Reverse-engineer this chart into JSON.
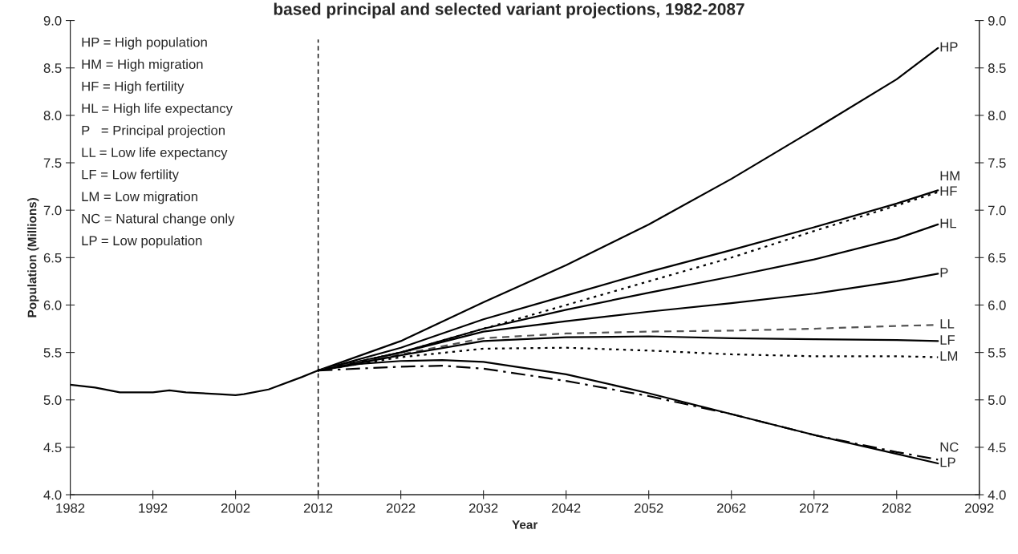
{
  "chart_data": {
    "type": "line",
    "title": "based principal and selected variant projections, 1982-2087",
    "xlabel": "Year",
    "ylabel": "Population (Millions)",
    "xlim": [
      1982,
      2092
    ],
    "xticks": [
      1982,
      1992,
      2002,
      2012,
      2022,
      2032,
      2042,
      2052,
      2062,
      2072,
      2082,
      2092
    ],
    "ylim": [
      4.0,
      9.0
    ],
    "yticks": [
      {
        "value": 4.0,
        "label": "4.0"
      },
      {
        "value": 4.5,
        "label": "4.5"
      },
      {
        "value": 5.0,
        "label": "5.0"
      },
      {
        "value": 5.5,
        "label": "5.5"
      },
      {
        "value": 6.0,
        "label": "6.0"
      },
      {
        "value": 6.5,
        "label": "6.5"
      },
      {
        "value": 7.0,
        "label": "7.0"
      },
      {
        "value": 7.5,
        "label": "7.5"
      },
      {
        "value": 8.0,
        "label": "8.0"
      },
      {
        "value": 8.5,
        "label": "8.5"
      },
      {
        "value": 9.0,
        "label": "9.0"
      }
    ],
    "y2lim": [
      4.0,
      9.0
    ],
    "y2ticks": [
      {
        "value": 4.0,
        "label": "4.0"
      },
      {
        "value": 4.5,
        "label": "4.5"
      },
      {
        "value": 5.0,
        "label": "5.0"
      },
      {
        "value": 5.5,
        "label": "5.5"
      },
      {
        "value": 6.0,
        "label": "6.0"
      },
      {
        "value": 6.5,
        "label": "6.5"
      },
      {
        "value": 7.0,
        "label": "7.0"
      },
      {
        "value": 7.5,
        "label": "7.5"
      },
      {
        "value": 8.0,
        "label": "8.0"
      },
      {
        "value": 8.5,
        "label": "8.5"
      },
      {
        "value": 9.0,
        "label": "9.0"
      }
    ],
    "grid": false,
    "legend": false,
    "marker": "none",
    "ref_lines": [
      {
        "axis": "x",
        "value": 2012,
        "line_style": "dashed",
        "color": "#000000"
      }
    ],
    "annotations": [
      "HP = High population",
      "HM = High migration",
      "HF = High fertility",
      "HL = High life expectancy",
      "P   = Principal projection",
      "LL = Low life expectancy",
      "LF = Low fertility",
      "LM = Low migration",
      "NC = Natural change only",
      "LP = Low population"
    ],
    "series": [
      {
        "name": "HP",
        "color": "#000000",
        "line_style": "solid",
        "x": [
          2012,
          2022,
          2032,
          2042,
          2052,
          2062,
          2072,
          2082,
          2087
        ],
        "values": [
          5.31,
          5.62,
          6.03,
          6.42,
          6.85,
          7.33,
          7.85,
          8.38,
          8.71
        ]
      },
      {
        "name": "HM",
        "color": "#000000",
        "line_style": "solid",
        "x": [
          2012,
          2022,
          2032,
          2042,
          2052,
          2062,
          2072,
          2082,
          2087
        ],
        "values": [
          5.31,
          5.55,
          5.85,
          6.1,
          6.35,
          6.58,
          6.82,
          7.07,
          7.21
        ]
      },
      {
        "name": "HF",
        "color": "#000000",
        "line_style": "dotted",
        "x": [
          2012,
          2022,
          2032,
          2042,
          2052,
          2062,
          2072,
          2082,
          2087
        ],
        "values": [
          5.31,
          5.5,
          5.75,
          6.0,
          6.25,
          6.5,
          6.78,
          7.05,
          7.19
        ]
      },
      {
        "name": "HL",
        "color": "#000000",
        "line_style": "solid",
        "x": [
          2012,
          2022,
          2032,
          2042,
          2052,
          2062,
          2072,
          2082,
          2087
        ],
        "values": [
          5.31,
          5.5,
          5.75,
          5.95,
          6.13,
          6.3,
          6.48,
          6.7,
          6.85
        ]
      },
      {
        "name": "P",
        "color": "#000000",
        "line_style": "solid",
        "x": [
          1982,
          1985,
          1988,
          1992,
          1994,
          1996,
          2000,
          2002,
          2003,
          2006,
          2010,
          2012,
          2022,
          2032,
          2042,
          2052,
          2062,
          2072,
          2082,
          2087
        ],
        "values": [
          5.16,
          5.13,
          5.08,
          5.08,
          5.1,
          5.08,
          5.06,
          5.05,
          5.06,
          5.11,
          5.24,
          5.31,
          5.5,
          5.72,
          5.83,
          5.93,
          6.02,
          6.12,
          6.25,
          6.33
        ]
      },
      {
        "name": "LL",
        "color": "#555555",
        "line_style": "dashed",
        "x": [
          2012,
          2022,
          2032,
          2042,
          2052,
          2062,
          2072,
          2082,
          2087
        ],
        "values": [
          5.31,
          5.48,
          5.65,
          5.7,
          5.72,
          5.73,
          5.75,
          5.78,
          5.79
        ]
      },
      {
        "name": "LF",
        "color": "#000000",
        "line_style": "solid",
        "x": [
          2012,
          2022,
          2032,
          2042,
          2052,
          2062,
          2072,
          2082,
          2087
        ],
        "values": [
          5.31,
          5.47,
          5.62,
          5.66,
          5.67,
          5.65,
          5.64,
          5.63,
          5.62
        ]
      },
      {
        "name": "LM",
        "color": "#000000",
        "line_style": "dotted",
        "x": [
          2012,
          2022,
          2032,
          2042,
          2052,
          2062,
          2072,
          2082,
          2087
        ],
        "values": [
          5.31,
          5.45,
          5.54,
          5.55,
          5.52,
          5.48,
          5.46,
          5.46,
          5.45
        ]
      },
      {
        "name": "NC",
        "color": "#000000",
        "line_style": "dashdot",
        "x": [
          2012,
          2022,
          2027,
          2032,
          2042,
          2052,
          2062,
          2072,
          2082,
          2087
        ],
        "values": [
          5.31,
          5.35,
          5.36,
          5.33,
          5.2,
          5.04,
          4.85,
          4.63,
          4.45,
          4.37
        ]
      },
      {
        "name": "LP",
        "color": "#000000",
        "line_style": "solid",
        "x": [
          2012,
          2017,
          2022,
          2027,
          2032,
          2042,
          2052,
          2062,
          2072,
          2082,
          2087
        ],
        "values": [
          5.31,
          5.38,
          5.41,
          5.42,
          5.4,
          5.27,
          5.07,
          4.85,
          4.63,
          4.43,
          4.33
        ]
      }
    ]
  }
}
